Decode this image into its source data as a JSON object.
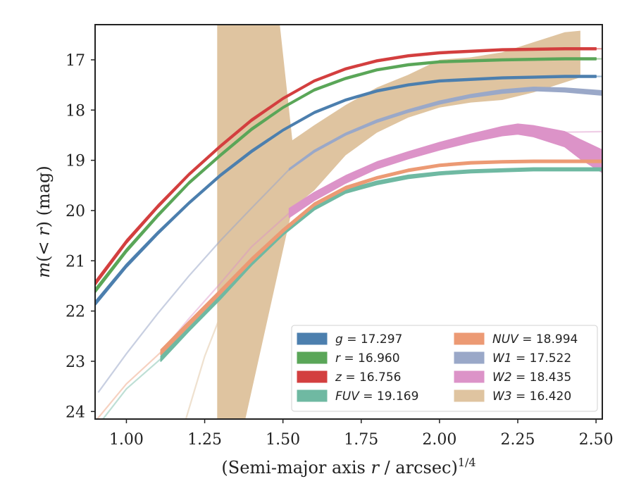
{
  "chart_data": {
    "type": "line",
    "xlabel": "(Semi-major axis r / arcsec)^{1/4}",
    "xlabel_parts": {
      "a": "(Semi-major axis ",
      "b": "r",
      "c": " / arcsec)",
      "d": "1/4"
    },
    "ylabel": "m(<r) (mag)",
    "ylabel_parts": {
      "a": "m",
      "b": "(< ",
      "c": "r",
      "d": ") (mag)"
    },
    "xlim": [
      0.9,
      2.52
    ],
    "ylim": [
      24.15,
      16.3
    ],
    "y_inverted": true,
    "xticks": [
      1.0,
      1.25,
      1.5,
      1.75,
      2.0,
      2.25,
      2.5
    ],
    "xtick_labels": [
      "1.00",
      "1.25",
      "1.50",
      "1.75",
      "2.00",
      "2.25",
      "2.50"
    ],
    "yticks": [
      17,
      18,
      19,
      20,
      21,
      22,
      23,
      24
    ],
    "ytick_labels": [
      "17",
      "18",
      "19",
      "20",
      "21",
      "22",
      "23",
      "24"
    ],
    "grid": false,
    "legend_position": "lower-right",
    "legend_columns": 2,
    "series": [
      {
        "name": "g",
        "band": "g",
        "total": "17.297",
        "color": "#4c7fae",
        "x": [
          0.9,
          1.0,
          1.1,
          1.2,
          1.3,
          1.4,
          1.5,
          1.6,
          1.7,
          1.8,
          1.9,
          2.0,
          2.2,
          2.4,
          2.5
        ],
        "y": [
          21.85,
          21.1,
          20.45,
          19.85,
          19.3,
          18.82,
          18.4,
          18.05,
          17.8,
          17.62,
          17.5,
          17.42,
          17.36,
          17.33,
          17.33
        ],
        "width": [
          0.08,
          0.07,
          0.06,
          0.05,
          0.05,
          0.05,
          0.04,
          0.04,
          0.04,
          0.04,
          0.04,
          0.04,
          0.04,
          0.04,
          0.04
        ],
        "ext_x": [
          2.5,
          2.52
        ],
        "ext_y": [
          17.33,
          17.33
        ],
        "ext_opacity": 0.5
      },
      {
        "name": "r",
        "band": "r",
        "total": "16.960",
        "color": "#5aa658",
        "x": [
          0.9,
          1.0,
          1.1,
          1.2,
          1.3,
          1.4,
          1.5,
          1.6,
          1.7,
          1.8,
          1.9,
          2.0,
          2.2,
          2.4,
          2.5
        ],
        "y": [
          21.6,
          20.8,
          20.1,
          19.45,
          18.9,
          18.38,
          17.95,
          17.6,
          17.37,
          17.2,
          17.1,
          17.04,
          17.0,
          16.98,
          16.98
        ],
        "width": [
          0.08,
          0.07,
          0.06,
          0.05,
          0.05,
          0.05,
          0.04,
          0.04,
          0.04,
          0.04,
          0.04,
          0.04,
          0.04,
          0.04,
          0.04
        ],
        "ext_x": [
          2.5,
          2.52
        ],
        "ext_y": [
          16.98,
          16.98
        ],
        "ext_opacity": 0.5
      },
      {
        "name": "z",
        "band": "z",
        "total": "16.756",
        "color": "#d33f3f",
        "x": [
          0.9,
          1.0,
          1.1,
          1.2,
          1.3,
          1.4,
          1.5,
          1.6,
          1.7,
          1.8,
          1.9,
          2.0,
          2.2,
          2.4,
          2.5
        ],
        "y": [
          21.45,
          20.62,
          19.92,
          19.28,
          18.72,
          18.2,
          17.77,
          17.42,
          17.18,
          17.02,
          16.92,
          16.86,
          16.8,
          16.78,
          16.78
        ],
        "width": [
          0.08,
          0.07,
          0.06,
          0.05,
          0.05,
          0.05,
          0.04,
          0.04,
          0.04,
          0.04,
          0.04,
          0.04,
          0.04,
          0.04,
          0.04
        ],
        "ext_x": [
          2.5,
          2.52
        ],
        "ext_y": [
          16.78,
          16.78
        ],
        "ext_opacity": 0.5
      },
      {
        "name": "FUV",
        "band": "FUV",
        "total": "19.169",
        "color": "#6fb9a2",
        "x": [
          1.11,
          1.2,
          1.3,
          1.4,
          1.5,
          1.6,
          1.7,
          1.8,
          1.9,
          2.0,
          2.1,
          2.2,
          2.3,
          2.4,
          2.52
        ],
        "y": [
          22.95,
          22.35,
          21.72,
          21.05,
          20.45,
          19.95,
          19.62,
          19.45,
          19.33,
          19.26,
          19.22,
          19.2,
          19.18,
          19.18,
          19.18
        ],
        "width": [
          0.1,
          0.1,
          0.09,
          0.08,
          0.08,
          0.08,
          0.07,
          0.07,
          0.07,
          0.06,
          0.06,
          0.06,
          0.06,
          0.06,
          0.06
        ],
        "ext_x": [
          0.9,
          1.0,
          1.11
        ],
        "ext_y": [
          24.35,
          23.55,
          22.95
        ],
        "ext_opacity": 0.45
      },
      {
        "name": "NUV",
        "band": "NUV",
        "total": "18.994",
        "color": "#ec9a74",
        "x": [
          1.11,
          1.2,
          1.3,
          1.4,
          1.5,
          1.6,
          1.7,
          1.8,
          1.9,
          2.0,
          2.1,
          2.2,
          2.3,
          2.4,
          2.52
        ],
        "y": [
          22.82,
          22.25,
          21.62,
          20.98,
          20.4,
          19.88,
          19.55,
          19.35,
          19.2,
          19.1,
          19.05,
          19.03,
          19.02,
          19.02,
          19.02
        ],
        "width": [
          0.1,
          0.1,
          0.09,
          0.08,
          0.07,
          0.06,
          0.06,
          0.05,
          0.05,
          0.05,
          0.05,
          0.05,
          0.05,
          0.05,
          0.05
        ],
        "ext_x": [
          0.9,
          1.0,
          1.11
        ],
        "ext_y": [
          24.2,
          23.45,
          22.82
        ],
        "ext_opacity": 0.45
      },
      {
        "name": "W1",
        "band": "W1",
        "total": "17.522",
        "color": "#9aa8c8",
        "x": [
          1.52,
          1.6,
          1.7,
          1.8,
          1.9,
          2.0,
          2.1,
          2.2,
          2.3,
          2.4,
          2.52
        ],
        "y": [
          19.18,
          18.82,
          18.48,
          18.22,
          18.02,
          17.85,
          17.72,
          17.63,
          17.58,
          17.6,
          17.66
        ],
        "width": [
          0.03,
          0.04,
          0.04,
          0.05,
          0.05,
          0.06,
          0.06,
          0.07,
          0.07,
          0.08,
          0.09
        ],
        "ext_x": [
          0.91,
          1.0,
          1.1,
          1.2,
          1.3,
          1.4,
          1.52
        ],
        "ext_y": [
          23.62,
          22.85,
          22.05,
          21.3,
          20.6,
          19.95,
          19.18
        ],
        "ext_opacity": 0.55
      },
      {
        "name": "W2",
        "band": "W2",
        "total": "18.435",
        "color": "#dc93c8",
        "x": [
          1.52,
          1.6,
          1.7,
          1.8,
          1.9,
          2.0,
          2.1,
          2.2,
          2.25,
          2.3,
          2.4,
          2.45,
          2.52
        ],
        "y": [
          20.05,
          19.72,
          19.38,
          19.1,
          18.9,
          18.72,
          18.56,
          18.42,
          18.38,
          18.42,
          18.58,
          18.78,
          19.02
        ],
        "width": [
          0.18,
          0.16,
          0.15,
          0.14,
          0.14,
          0.15,
          0.16,
          0.18,
          0.2,
          0.22,
          0.3,
          0.38,
          0.45
        ],
        "ext_x": [
          1.11,
          1.2,
          1.3,
          1.4,
          1.52
        ],
        "ext_y": [
          22.82,
          22.15,
          21.45,
          20.72,
          20.05
        ],
        "ext2_x": [
          2.25,
          2.4,
          2.52
        ],
        "ext2_y": [
          18.45,
          18.44,
          18.43
        ],
        "ext_opacity": 0.45
      },
      {
        "name": "W3",
        "band": "W3",
        "total": "16.420",
        "color": "#dfc4a0",
        "band_x": [
          1.29,
          1.29,
          1.49,
          1.53,
          1.6,
          1.7,
          1.8,
          1.9,
          2.0,
          2.1,
          2.2,
          2.3,
          2.4,
          2.45,
          2.45,
          2.4,
          2.3,
          2.2,
          2.1,
          2.0,
          1.9,
          1.8,
          1.7,
          1.6,
          1.53,
          1.38,
          1.29
        ],
        "band_y": [
          24.15,
          16.3,
          16.3,
          18.6,
          18.3,
          17.9,
          17.55,
          17.3,
          17.0,
          16.95,
          16.85,
          16.65,
          16.45,
          16.42,
          17.35,
          17.45,
          17.65,
          17.8,
          17.85,
          17.95,
          18.15,
          18.45,
          18.9,
          19.6,
          19.95,
          24.15,
          24.15
        ],
        "ext_x": [
          1.19,
          1.25,
          1.3,
          1.4,
          1.5,
          1.6
        ],
        "ext_y": [
          24.15,
          22.9,
          22.1,
          21.1,
          20.4,
          19.9
        ],
        "ext_opacity": 0.5
      }
    ],
    "draw_order": [
      "W3",
      "W1",
      "W2",
      "FUV",
      "NUV",
      "g",
      "r",
      "z"
    ],
    "legend": {
      "column1": [
        "g",
        "r",
        "z",
        "FUV"
      ],
      "column2": [
        "NUV",
        "W1",
        "W2",
        "W3"
      ]
    }
  }
}
